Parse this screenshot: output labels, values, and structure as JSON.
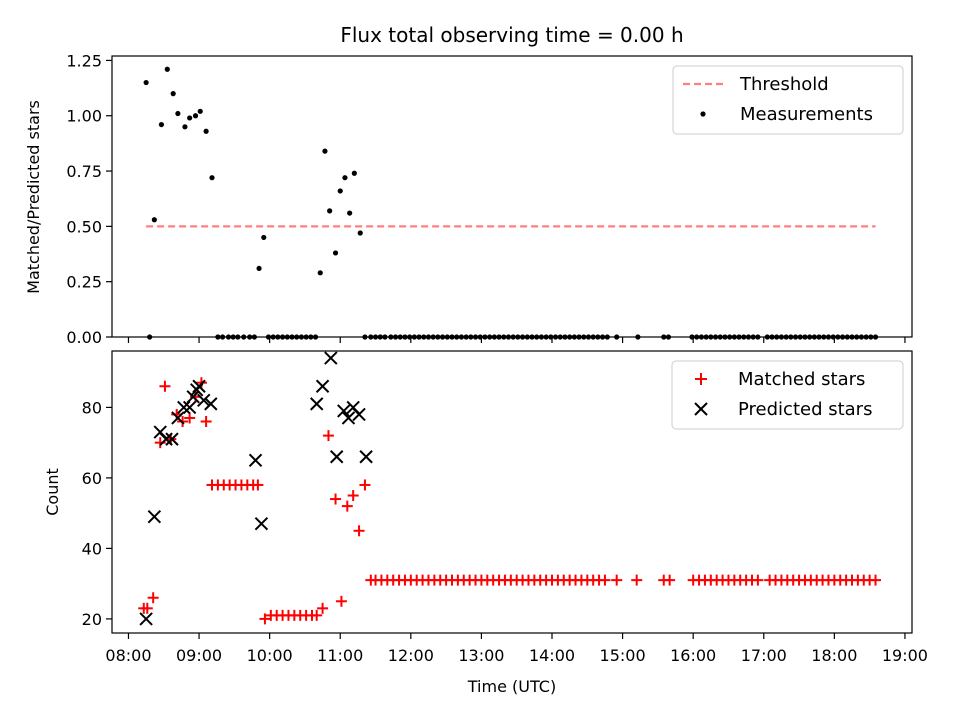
{
  "chart_data": [
    {
      "type": "scatter",
      "title": "Flux total observing time = 0.00 h",
      "xlabel": "",
      "ylabel": "Matched/Predicted stars",
      "xlim": [
        "07:46",
        "19:06"
      ],
      "ylim": [
        0,
        1.27
      ],
      "yticks": [
        0.0,
        0.25,
        0.5,
        0.75,
        1.0,
        1.25
      ],
      "ytick_labels": [
        "0.00",
        "0.25",
        "0.50",
        "0.75",
        "1.00",
        "1.25"
      ],
      "x_tick_labels_visible": false,
      "legend_position": "upper right",
      "threshold": {
        "name": "Threshold",
        "color": "#ff7f7f",
        "style": "dashed",
        "x": [
          "08:15",
          "18:35"
        ],
        "y": 0.5
      },
      "series": [
        {
          "name": "Measurements",
          "color": "#000000",
          "marker": "dot",
          "x": [
            "08:15",
            "08:18",
            "08:22",
            "08:28",
            "08:33",
            "08:38",
            "08:42",
            "08:48",
            "08:52",
            "08:57",
            "09:01",
            "09:06",
            "09:11",
            "09:16",
            "09:20",
            "09:25",
            "09:29",
            "09:33",
            "09:38",
            "09:43",
            "09:47",
            "09:51",
            "09:55",
            "09:59",
            "10:03",
            "10:07",
            "10:11",
            "10:15",
            "10:19",
            "10:23",
            "10:27",
            "10:31",
            "10:35",
            "10:39",
            "10:43",
            "10:47",
            "10:51",
            "10:56",
            "11:00",
            "11:04",
            "11:08",
            "11:12",
            "11:17",
            "11:21",
            "11:26",
            "11:30",
            "11:34",
            "11:38",
            "11:43",
            "11:47",
            "11:51",
            "11:55",
            "11:59",
            "12:03",
            "12:07",
            "12:11",
            "12:15",
            "12:19",
            "12:23",
            "12:27",
            "12:31",
            "12:35",
            "12:39",
            "12:43",
            "12:47",
            "12:51",
            "12:55",
            "12:59",
            "13:03",
            "13:07",
            "13:11",
            "13:15",
            "13:19",
            "13:23",
            "13:27",
            "13:31",
            "13:35",
            "13:39",
            "13:43",
            "13:47",
            "13:51",
            "13:55",
            "13:59",
            "14:03",
            "14:07",
            "14:11",
            "14:15",
            "14:19",
            "14:23",
            "14:27",
            "14:31",
            "14:35",
            "14:39",
            "14:43",
            "14:47",
            "14:55",
            "15:13",
            "15:35",
            "15:39",
            "15:59",
            "16:03",
            "16:07",
            "16:11",
            "16:15",
            "16:19",
            "16:23",
            "16:27",
            "16:31",
            "16:35",
            "16:39",
            "16:43",
            "16:47",
            "16:51",
            "16:55",
            "17:03",
            "17:07",
            "17:11",
            "17:15",
            "17:19",
            "17:23",
            "17:27",
            "17:31",
            "17:35",
            "17:39",
            "17:43",
            "17:47",
            "17:51",
            "17:55",
            "17:59",
            "18:03",
            "18:07",
            "18:11",
            "18:15",
            "18:19",
            "18:23",
            "18:27",
            "18:31",
            "18:35"
          ],
          "y": [
            1.15,
            0.0,
            0.53,
            0.96,
            1.21,
            1.1,
            1.01,
            0.95,
            0.99,
            1.0,
            1.02,
            0.93,
            0.72,
            0.0,
            0.0,
            0.0,
            0.0,
            0.0,
            0.0,
            0.0,
            0.0,
            0.31,
            0.45,
            0.0,
            0.0,
            0.0,
            0.0,
            0.0,
            0.0,
            0.0,
            0.0,
            0.0,
            0.0,
            0.0,
            0.29,
            0.84,
            0.57,
            0.38,
            0.66,
            0.72,
            0.56,
            0.74,
            0.47,
            0.0,
            0.0,
            0.0,
            0.0,
            0.0,
            0.0,
            0.0,
            0.0,
            0.0,
            0.0,
            0.0,
            0.0,
            0.0,
            0.0,
            0.0,
            0.0,
            0.0,
            0.0,
            0.0,
            0.0,
            0.0,
            0.0,
            0.0,
            0.0,
            0.0,
            0.0,
            0.0,
            0.0,
            0.0,
            0.0,
            0.0,
            0.0,
            0.0,
            0.0,
            0.0,
            0.0,
            0.0,
            0.0,
            0.0,
            0.0,
            0.0,
            0.0,
            0.0,
            0.0,
            0.0,
            0.0,
            0.0,
            0.0,
            0.0,
            0.0,
            0.0,
            0.0,
            0.0,
            0.0,
            0.0,
            0.0,
            0.0,
            0.0,
            0.0,
            0.0,
            0.0,
            0.0,
            0.0,
            0.0,
            0.0,
            0.0,
            0.0,
            0.0,
            0.0,
            0.0,
            0.0,
            0.0,
            0.0,
            0.0,
            0.0,
            0.0,
            0.0,
            0.0,
            0.0,
            0.0,
            0.0,
            0.0,
            0.0,
            0.0,
            0.0,
            0.0,
            0.0,
            0.0,
            0.0,
            0.0,
            0.0,
            0.0,
            0.0,
            0.0,
            0.0
          ]
        }
      ]
    },
    {
      "type": "scatter",
      "title": "",
      "xlabel": "Time (UTC)",
      "ylabel": "Count",
      "xlim": [
        "07:46",
        "19:06"
      ],
      "ylim": [
        16,
        96
      ],
      "yticks": [
        20,
        40,
        60,
        80
      ],
      "ytick_labels": [
        "20",
        "40",
        "60",
        "80"
      ],
      "xticks": [
        "08:00",
        "09:00",
        "10:00",
        "11:00",
        "12:00",
        "13:00",
        "14:00",
        "15:00",
        "16:00",
        "17:00",
        "18:00",
        "19:00"
      ],
      "xtick_labels": [
        "08:00",
        "09:00",
        "10:00",
        "11:00",
        "12:00",
        "13:00",
        "14:00",
        "15:00",
        "16:00",
        "17:00",
        "18:00",
        "19:00"
      ],
      "legend_position": "upper right",
      "series": [
        {
          "name": "Matched stars",
          "color": "#ff0000",
          "marker": "plus",
          "x": [
            "08:13",
            "08:16",
            "08:21",
            "08:27",
            "08:31",
            "08:36",
            "08:41",
            "08:46",
            "08:52",
            "08:57",
            "09:02",
            "09:06",
            "09:11",
            "09:16",
            "09:21",
            "09:26",
            "09:31",
            "09:36",
            "09:41",
            "09:46",
            "09:50",
            "09:56",
            "10:01",
            "10:06",
            "10:11",
            "10:16",
            "10:21",
            "10:26",
            "10:31",
            "10:36",
            "10:40",
            "10:45",
            "10:50",
            "10:56",
            "11:01",
            "11:06",
            "11:11",
            "11:16",
            "11:21",
            "11:26",
            "11:30",
            "11:35",
            "11:40",
            "11:45",
            "11:50",
            "11:55",
            "12:00",
            "12:05",
            "12:10",
            "12:15",
            "12:20",
            "12:25",
            "12:30",
            "12:35",
            "12:40",
            "12:45",
            "12:50",
            "12:55",
            "13:00",
            "13:05",
            "13:10",
            "13:15",
            "13:20",
            "13:25",
            "13:30",
            "13:35",
            "13:40",
            "13:45",
            "13:50",
            "13:55",
            "14:00",
            "14:05",
            "14:10",
            "14:15",
            "14:20",
            "14:25",
            "14:30",
            "14:35",
            "14:40",
            "14:45",
            "14:55",
            "15:12",
            "15:35",
            "15:40",
            "16:00",
            "16:05",
            "16:10",
            "16:15",
            "16:20",
            "16:25",
            "16:30",
            "16:35",
            "16:40",
            "16:45",
            "16:50",
            "16:55",
            "17:05",
            "17:10",
            "17:15",
            "17:20",
            "17:25",
            "17:30",
            "17:35",
            "17:40",
            "17:45",
            "17:50",
            "17:55",
            "18:00",
            "18:05",
            "18:10",
            "18:15",
            "18:20",
            "18:25",
            "18:30",
            "18:35"
          ],
          "y": [
            23,
            23,
            26,
            70,
            86,
            71,
            78,
            76,
            77,
            83,
            87,
            76,
            58,
            58,
            58,
            58,
            58,
            58,
            58,
            58,
            58,
            20,
            21,
            21,
            21,
            21,
            21,
            21,
            21,
            21,
            21,
            23,
            72,
            54,
            25,
            52,
            55,
            45,
            58,
            31,
            31,
            31,
            31,
            31,
            31,
            31,
            31,
            31,
            31,
            31,
            31,
            31,
            31,
            31,
            31,
            31,
            31,
            31,
            31,
            31,
            31,
            31,
            31,
            31,
            31,
            31,
            31,
            31,
            31,
            31,
            31,
            31,
            31,
            31,
            31,
            31,
            31,
            31,
            31,
            31,
            31,
            31,
            31,
            31,
            31,
            31,
            31,
            31,
            31,
            31,
            31,
            31,
            31,
            31,
            31,
            31,
            31,
            31,
            31,
            31,
            31,
            31,
            31,
            31,
            31,
            31,
            31,
            31,
            31,
            31,
            31,
            31,
            31,
            31,
            31
          ]
        },
        {
          "name": "Predicted stars",
          "color": "#000000",
          "marker": "x",
          "x": [
            "08:15",
            "08:22",
            "08:27",
            "08:32",
            "08:37",
            "08:42",
            "08:47",
            "08:52",
            "08:55",
            "08:58",
            "09:00",
            "09:04",
            "09:10",
            "09:48",
            "09:53",
            "10:40",
            "10:45",
            "10:52",
            "10:57",
            "11:03",
            "11:07",
            "11:11",
            "11:16",
            "11:22"
          ],
          "y": [
            20,
            49,
            73,
            71,
            71,
            77,
            80,
            80,
            83,
            85,
            86,
            82,
            81,
            65,
            47,
            81,
            86,
            94,
            66,
            79,
            77,
            80,
            78,
            66
          ]
        }
      ]
    }
  ]
}
